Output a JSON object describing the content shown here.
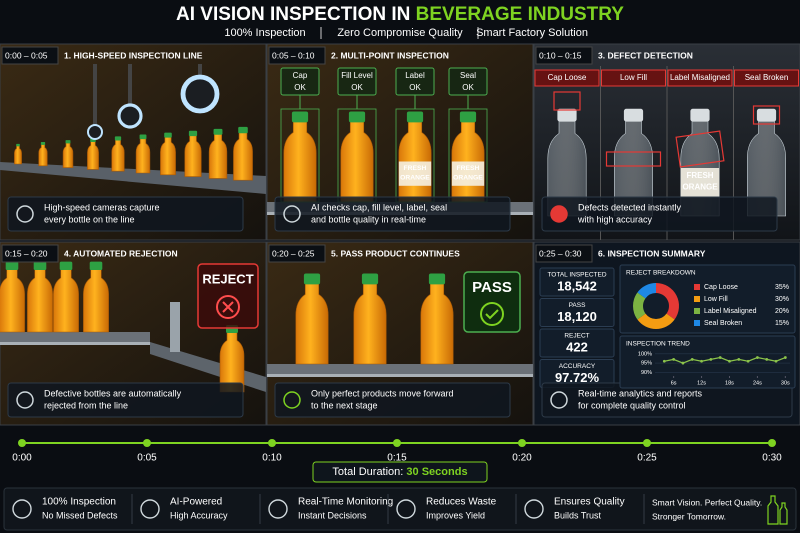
{
  "header": {
    "title_main": "AI VISION INSPECTION IN",
    "title_accent": "BEVERAGE INDUSTRY",
    "subtitle": [
      "100% Inspection",
      "Zero Compromise Quality",
      "Smart Factory Solution"
    ]
  },
  "bottle_label": [
    "FRESH",
    "ORANGE"
  ],
  "panels": [
    {
      "time": "0:00 – 0:05",
      "title": "1. HIGH-SPEED INSPECTION LINE",
      "caption": [
        "High-speed cameras capture",
        "every bottle on the line"
      ]
    },
    {
      "time": "0:05 – 0:10",
      "title": "2. MULTI-POINT INSPECTION",
      "caption": [
        "AI checks cap, fill level, label, seal",
        "and bottle quality in real-time"
      ],
      "checks": [
        {
          "part": "Cap",
          "status": "OK"
        },
        {
          "part": "Fill Level",
          "status": "OK"
        },
        {
          "part": "Label",
          "status": "OK"
        },
        {
          "part": "Seal",
          "status": "OK"
        }
      ]
    },
    {
      "time": "0:10 – 0:15",
      "title": "3. DEFECT DETECTION",
      "caption": [
        "Defects detected instantly",
        "with high accuracy"
      ],
      "defects": [
        "Cap Loose",
        "Low Fill",
        "Label Misaligned",
        "Seal Broken"
      ]
    },
    {
      "time": "0:15 – 0:20",
      "title": "4. AUTOMATED REJECTION",
      "caption": [
        "Defective bottles are automatically",
        "rejected from the line"
      ],
      "stamp": "REJECT"
    },
    {
      "time": "0:20 – 0:25",
      "title": "5. PASS PRODUCT CONTINUES",
      "caption": [
        "Only perfect products move forward",
        "to the next stage"
      ],
      "stamp": "PASS"
    },
    {
      "time": "0:25 – 0:30",
      "title": "6. INSPECTION SUMMARY",
      "caption": [
        "Real-time analytics and reports",
        "for complete quality control"
      ],
      "stats": [
        {
          "label": "TOTAL INSPECTED",
          "value": "18,542"
        },
        {
          "label": "PASS",
          "value": "18,120"
        },
        {
          "label": "REJECT",
          "value": "422"
        },
        {
          "label": "ACCURACY",
          "value": "97.72%"
        }
      ]
    }
  ],
  "chart_data": [
    {
      "type": "pie",
      "title": "REJECT BREAKDOWN",
      "categories": [
        "Cap Loose",
        "Low Fill",
        "Label Misaligned",
        "Seal Broken"
      ],
      "values": [
        35,
        30,
        20,
        15
      ],
      "value_labels": [
        "35%",
        "30%",
        "20%",
        "15%"
      ],
      "colors": [
        "#e53935",
        "#f39c12",
        "#7cb342",
        "#1e88e5"
      ]
    },
    {
      "type": "line",
      "title": "INSPECTION TREND",
      "x": [
        4,
        6,
        8,
        10,
        12,
        14,
        16,
        18,
        20,
        22,
        24,
        26,
        28,
        30
      ],
      "series": [
        {
          "color": "#8bc34a",
          "values": [
            96,
            97,
            95,
            97,
            96,
            97,
            98,
            96,
            97,
            96,
            98,
            97,
            96,
            98
          ]
        }
      ],
      "xlim": [
        2,
        31
      ],
      "xticks": [
        {
          "value": 6,
          "label": "6s"
        },
        {
          "value": 12,
          "label": "12s"
        },
        {
          "value": 18,
          "label": "18s"
        },
        {
          "value": 24,
          "label": "24s"
        },
        {
          "value": 30,
          "label": "30s"
        }
      ],
      "ylim": [
        88,
        101
      ],
      "yticks": [
        {
          "value": 90,
          "label": "90%"
        },
        {
          "value": 95,
          "label": "95%"
        },
        {
          "value": 100,
          "label": "100%"
        }
      ],
      "grid": true
    }
  ],
  "timeline": {
    "labels": [
      "0:00",
      "0:05",
      "0:10",
      "0:15",
      "0:20",
      "0:25",
      "0:30"
    ],
    "duration_label": "Total Duration:",
    "duration_value": "30 Seconds"
  },
  "features": [
    {
      "title": "100% Inspection",
      "subtitle": "No Missed Defects"
    },
    {
      "title": "AI-Powered",
      "subtitle": "High Accuracy"
    },
    {
      "title": "Real-Time Monitoring",
      "subtitle": "Instant Decisions"
    },
    {
      "title": "Reduces Waste",
      "subtitle": "Improves Yield"
    },
    {
      "title": "Ensures Quality",
      "subtitle": "Builds Trust"
    }
  ],
  "tagline": [
    "Smart Vision. Perfect Quality.",
    "Stronger Tomorrow."
  ]
}
